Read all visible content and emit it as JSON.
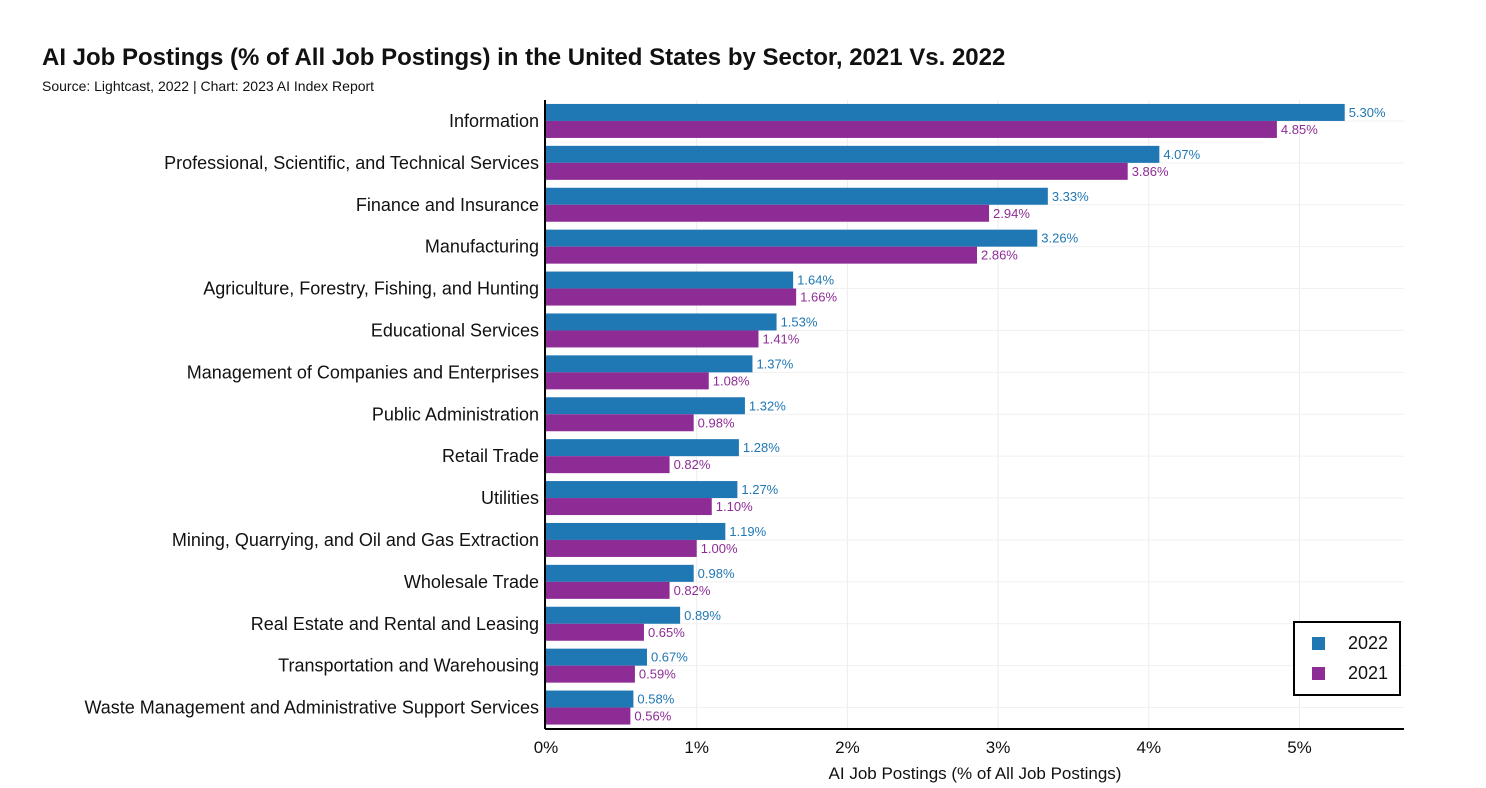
{
  "header": {
    "title": "AI Job Postings (% of All Job Postings) in the United States by Sector, 2021 Vs. 2022",
    "source": "Source: Lightcast, 2022 | Chart: 2023 AI Index Report"
  },
  "colors": {
    "s2022": "#1f77b4",
    "s2021": "#8e2c96"
  },
  "chart_data": {
    "type": "bar",
    "orientation": "horizontal",
    "title": "AI Job Postings (% of All Job Postings) in the United States by Sector, 2021 Vs. 2022",
    "xlabel": "AI Job Postings (% of All Job Postings)",
    "ylabel": "",
    "xlim": [
      0,
      5.7
    ],
    "xticks": [
      0,
      1,
      2,
      3,
      4,
      5
    ],
    "xtick_labels": [
      "0%",
      "1%",
      "2%",
      "3%",
      "4%",
      "5%"
    ],
    "grid": true,
    "legend_position": "bottom-right",
    "categories": [
      "Information",
      "Professional, Scientific, and Technical Services",
      "Finance and Insurance",
      "Manufacturing",
      "Agriculture, Forestry, Fishing, and Hunting",
      "Educational Services",
      "Management of Companies and Enterprises",
      "Public Administration",
      "Retail Trade",
      "Utilities",
      "Mining, Quarrying, and Oil and Gas Extraction",
      "Wholesale Trade",
      "Real Estate and Rental and Leasing",
      "Transportation and Warehousing",
      "Waste Management and Administrative Support Services"
    ],
    "series": [
      {
        "name": "2022",
        "values": [
          5.3,
          4.07,
          3.33,
          3.26,
          1.64,
          1.53,
          1.37,
          1.32,
          1.28,
          1.27,
          1.19,
          0.98,
          0.89,
          0.67,
          0.58
        ],
        "labels": [
          "5.30%",
          "4.07%",
          "3.33%",
          "3.26%",
          "1.64%",
          "1.53%",
          "1.37%",
          "1.32%",
          "1.28%",
          "1.27%",
          "1.19%",
          "0.98%",
          "0.89%",
          "0.67%",
          "0.58%"
        ]
      },
      {
        "name": "2021",
        "values": [
          4.85,
          3.86,
          2.94,
          2.86,
          1.66,
          1.41,
          1.08,
          0.98,
          0.82,
          1.1,
          1.0,
          0.82,
          0.65,
          0.59,
          0.56
        ],
        "labels": [
          "4.85%",
          "3.86%",
          "2.94%",
          "2.86%",
          "1.66%",
          "1.41%",
          "1.08%",
          "0.98%",
          "0.82%",
          "1.10%",
          "1.00%",
          "0.82%",
          "0.65%",
          "0.59%",
          "0.56%"
        ]
      }
    ]
  }
}
